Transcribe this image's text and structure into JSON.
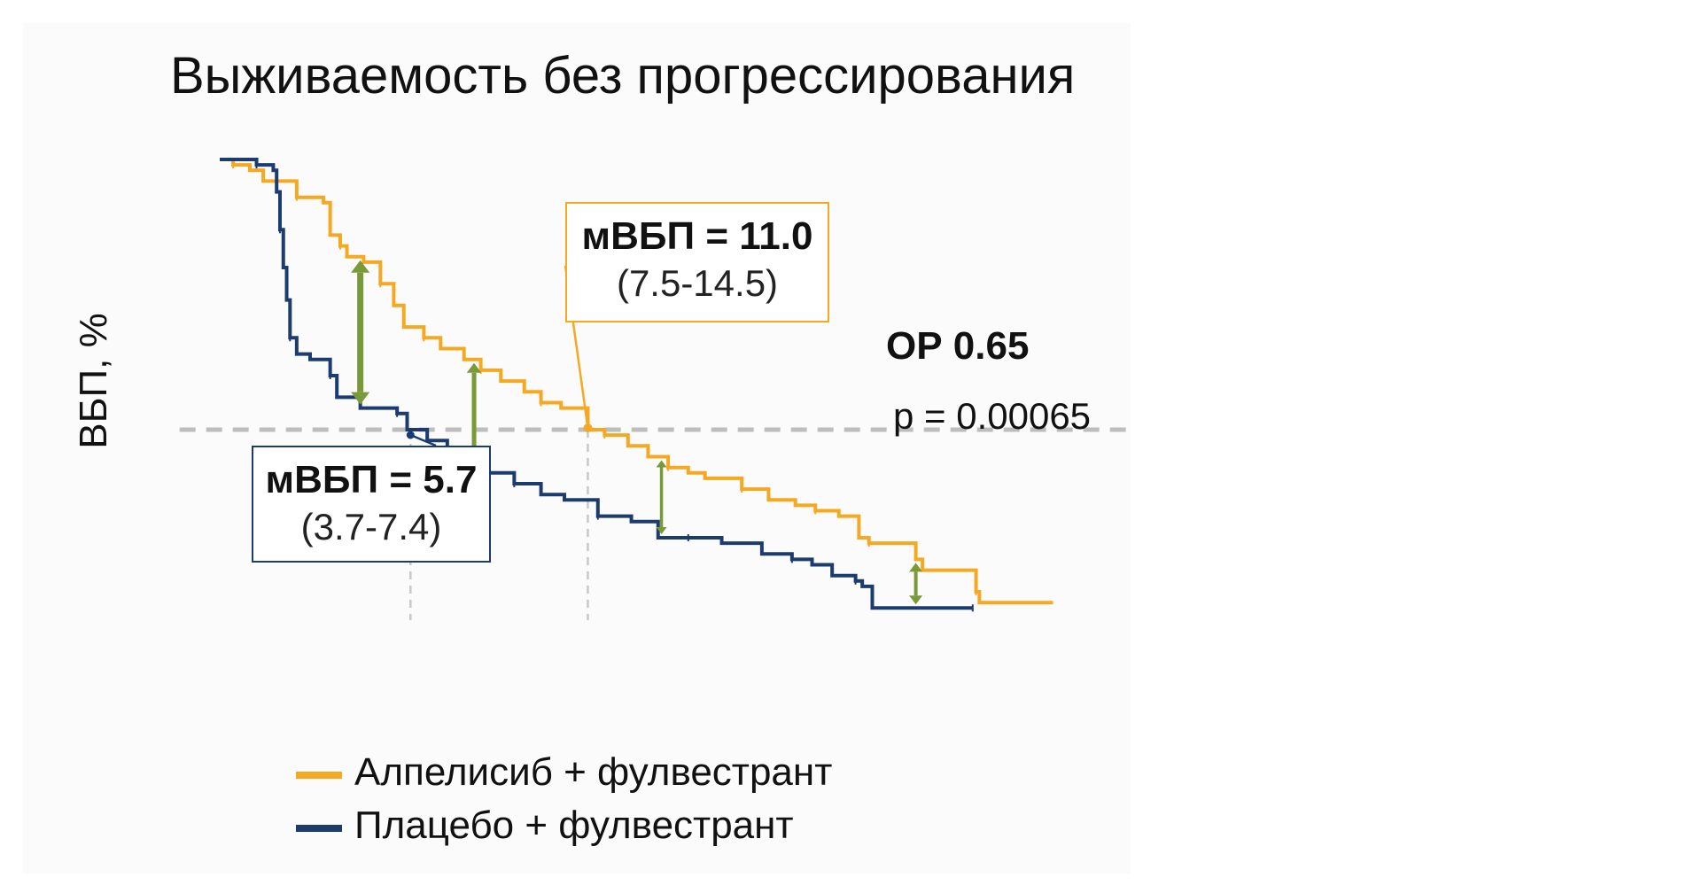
{
  "chart_data": {
    "type": "line",
    "subtype": "kaplan-meier-step",
    "title": "Выживаемость без прогрессирования",
    "ylabel": "ВБП, %",
    "xlabel": "",
    "xlim": [
      0,
      26
    ],
    "ylim": [
      0,
      100
    ],
    "grid": false,
    "legend_position": "bottom-left",
    "median_line_y": 50,
    "series": [
      {
        "name": "Алпелисиб + фулвестрант",
        "color": "#f5a822",
        "median": 11.0,
        "points": [
          [
            0,
            100
          ],
          [
            0.4,
            99
          ],
          [
            0.9,
            98
          ],
          [
            1.3,
            96
          ],
          [
            2.3,
            93
          ],
          [
            3.1,
            92
          ],
          [
            3.3,
            86
          ],
          [
            3.6,
            84
          ],
          [
            3.8,
            82
          ],
          [
            4.3,
            81
          ],
          [
            4.8,
            77
          ],
          [
            5.2,
            73
          ],
          [
            5.5,
            69
          ],
          [
            6.1,
            67
          ],
          [
            6.6,
            65
          ],
          [
            7.3,
            63
          ],
          [
            7.8,
            61
          ],
          [
            8.4,
            59
          ],
          [
            9.1,
            57
          ],
          [
            9.6,
            55
          ],
          [
            10.2,
            54
          ],
          [
            11.0,
            50
          ],
          [
            11.5,
            49
          ],
          [
            12.2,
            47
          ],
          [
            12.8,
            45
          ],
          [
            13.4,
            43
          ],
          [
            14.0,
            42
          ],
          [
            14.5,
            41
          ],
          [
            15.6,
            39
          ],
          [
            16.4,
            37
          ],
          [
            17.2,
            36
          ],
          [
            17.8,
            35
          ],
          [
            18.5,
            34
          ],
          [
            19.1,
            30
          ],
          [
            19.4,
            29
          ],
          [
            20.8,
            26
          ],
          [
            21.0,
            24
          ],
          [
            22.6,
            20
          ],
          [
            22.7,
            18
          ],
          [
            24.9,
            18
          ]
        ]
      },
      {
        "name": "Плацебо + фулвестрант",
        "color": "#1c3b6e",
        "median": 5.7,
        "points": [
          [
            0,
            100
          ],
          [
            1.1,
            99
          ],
          [
            1.6,
            98
          ],
          [
            1.7,
            94
          ],
          [
            1.8,
            87
          ],
          [
            1.9,
            80
          ],
          [
            2.0,
            74
          ],
          [
            2.1,
            67
          ],
          [
            2.3,
            64
          ],
          [
            2.7,
            63
          ],
          [
            3.3,
            60
          ],
          [
            3.5,
            56
          ],
          [
            4.2,
            54
          ],
          [
            5.3,
            53
          ],
          [
            5.6,
            50
          ],
          [
            6.2,
            48
          ],
          [
            6.8,
            45
          ],
          [
            7.0,
            43
          ],
          [
            8.0,
            42
          ],
          [
            8.8,
            40
          ],
          [
            9.6,
            38
          ],
          [
            10.3,
            37
          ],
          [
            11.3,
            34
          ],
          [
            12.3,
            33
          ],
          [
            13.1,
            30
          ],
          [
            14.0,
            30
          ],
          [
            15.0,
            29
          ],
          [
            16.2,
            27
          ],
          [
            17.1,
            26
          ],
          [
            17.7,
            25
          ],
          [
            18.3,
            23
          ],
          [
            19.0,
            22
          ],
          [
            19.2,
            21
          ],
          [
            19.5,
            17
          ],
          [
            22.5,
            17
          ]
        ]
      }
    ],
    "annotations": {
      "alp_median_label": "мВБП = 11.0",
      "alp_ci": "(7.5-14.5)",
      "pla_median_label": "мВБП = 5.7",
      "pla_ci": "(3.7-7.4)",
      "hazard_ratio": "ОР 0.65",
      "p_value": "p = 0.00065"
    }
  }
}
